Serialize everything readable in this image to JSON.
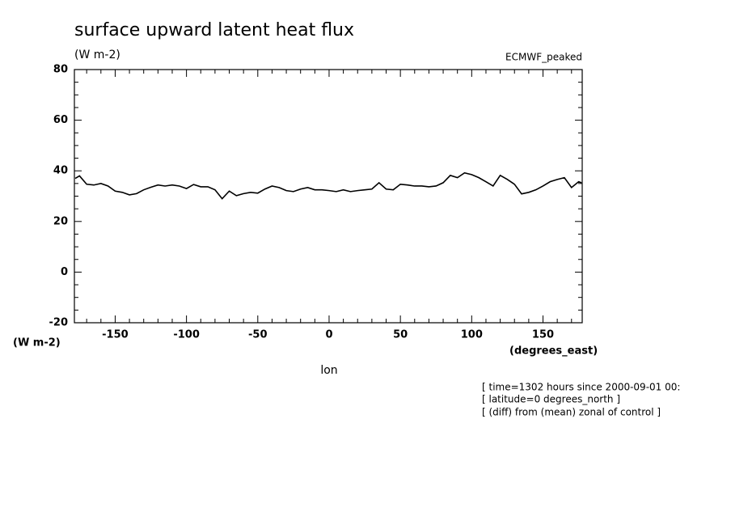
{
  "chart_data": {
    "type": "line",
    "title": "surface upward latent heat flux",
    "units_label": "(W m-2)",
    "subtitle_right": "ECMWF_peaked",
    "y_axis_unit": "(W m-2)",
    "x_axis_unit": "(degrees_east)",
    "x_label": "lon",
    "notes": [
      "[ time=1302 hours since 2000-09-01 00:",
      "[ latitude=0 degrees_north ]",
      "[ (diff) from (mean) zonal of control ]"
    ],
    "xlim": [
      -178.6,
      177.5
    ],
    "ylim": [
      -20,
      80
    ],
    "xticks": [
      -150,
      -100,
      -50,
      0,
      50,
      100,
      150
    ],
    "yticks": [
      -20,
      0,
      20,
      40,
      60,
      80
    ],
    "xminorticks": [
      -170,
      -160,
      -140,
      -130,
      -120,
      -110,
      -90,
      -80,
      -70,
      -60,
      -40,
      -30,
      -20,
      -10,
      10,
      20,
      30,
      40,
      60,
      70,
      80,
      90,
      110,
      120,
      130,
      140,
      160,
      170
    ],
    "yminorticks": [
      -15,
      -10,
      -5,
      5,
      10,
      15,
      25,
      30,
      35,
      45,
      50,
      55,
      65,
      70,
      75
    ],
    "x": [
      -178,
      -175,
      -170,
      -165,
      -160,
      -155,
      -150,
      -145,
      -140,
      -135,
      -130,
      -125,
      -120,
      -115,
      -110,
      -105,
      -100,
      -95,
      -90,
      -85,
      -80,
      -75,
      -70,
      -65,
      -60,
      -55,
      -50,
      -45,
      -40,
      -35,
      -30,
      -25,
      -20,
      -15,
      -10,
      -5,
      0,
      5,
      10,
      15,
      20,
      25,
      30,
      35,
      40,
      45,
      50,
      55,
      60,
      65,
      70,
      75,
      80,
      85,
      90,
      95,
      100,
      105,
      110,
      115,
      120,
      125,
      130,
      135,
      140,
      145,
      150,
      155,
      160,
      165,
      170,
      175,
      177
    ],
    "series": [
      {
        "name": "surface upward latent heat flux",
        "color": "#000000",
        "values": [
          37,
          38,
          34.7,
          34.4,
          35,
          34,
          32,
          31.5,
          30.5,
          31,
          32.5,
          33.5,
          34.4,
          34,
          34.4,
          34,
          33,
          34.6,
          33.7,
          33.7,
          32.5,
          29,
          32,
          30.2,
          31,
          31.5,
          31.2,
          32.8,
          34,
          33.4,
          32.2,
          31.8,
          32.8,
          33.4,
          32.5,
          32.5,
          32.2,
          31.8,
          32.5,
          31.8,
          32.2,
          32.5,
          32.8,
          35.3,
          32.8,
          32.5,
          34.7,
          34.4,
          34,
          34,
          33.7,
          34,
          35.3,
          38.2,
          37.3,
          39.2,
          38.5,
          37.3,
          35.7,
          34,
          38.2,
          36.6,
          34.7,
          30.9,
          31.5,
          32.5,
          34,
          35.7,
          36.6,
          37.3,
          33.4,
          35.7,
          35.3
        ]
      }
    ]
  }
}
